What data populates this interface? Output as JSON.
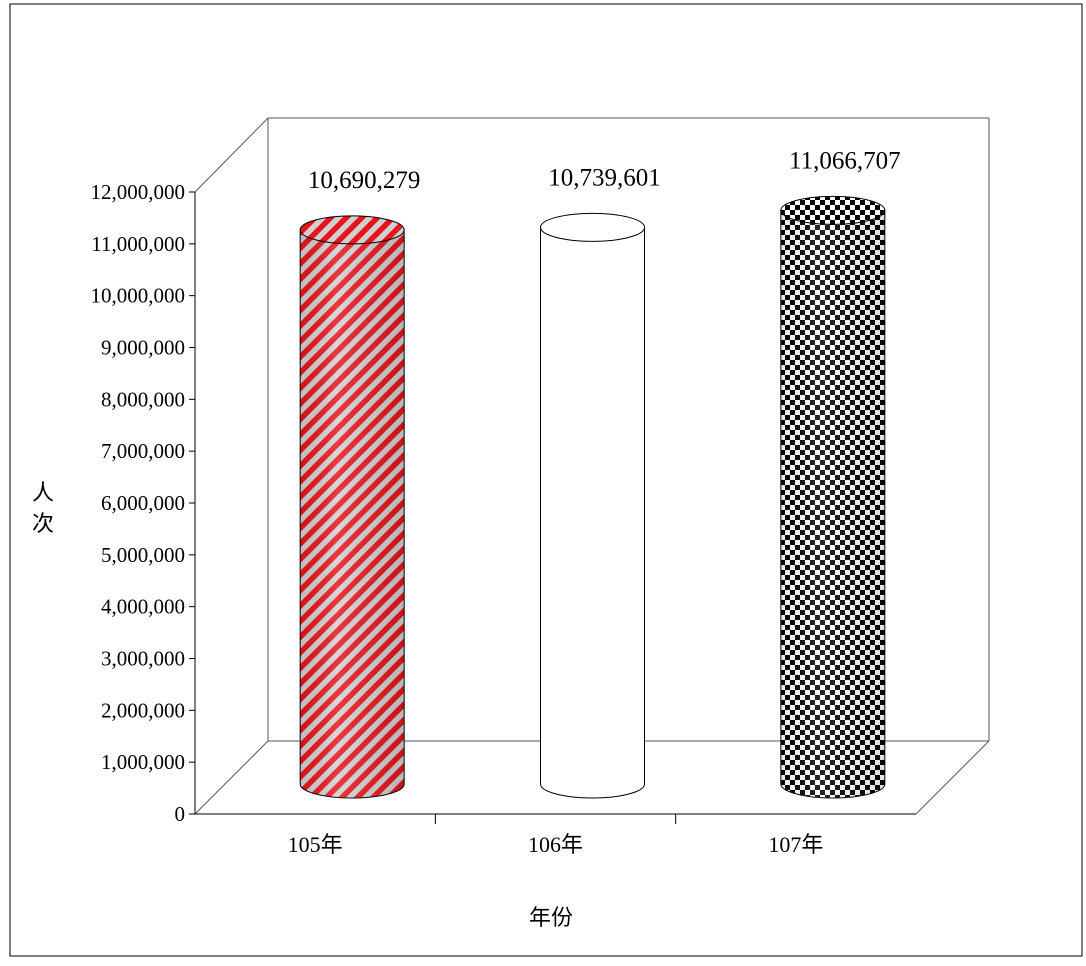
{
  "chart_data": {
    "type": "bar",
    "style": "3d-cylinder",
    "categories": [
      "105年",
      "106年",
      "107年"
    ],
    "values": [
      10690279,
      10739601,
      11066707
    ],
    "data_labels": [
      "10,690,279",
      "10,739,601",
      "11,066,707"
    ],
    "fills": [
      "red-diagonal-stripes",
      "white",
      "black-checkerboard"
    ],
    "colors": {
      "stripe": "#e8141c",
      "stripe_bg": "#d0d0d0",
      "checker": "#000000"
    },
    "ylim": [
      0,
      12000000
    ],
    "yticks": [
      0,
      1000000,
      2000000,
      3000000,
      4000000,
      5000000,
      6000000,
      7000000,
      8000000,
      9000000,
      10000000,
      11000000,
      12000000
    ],
    "ytick_labels": [
      "0",
      "1,000,000",
      "2,000,000",
      "3,000,000",
      "4,000,000",
      "5,000,000",
      "6,000,000",
      "7,000,000",
      "8,000,000",
      "9,000,000",
      "10,000,000",
      "11,000,000",
      "12,000,000"
    ],
    "xlabel": "年份",
    "ylabel": "人次",
    "ylabel_chars": [
      "人",
      "次"
    ],
    "grid": false,
    "legend": "none"
  }
}
